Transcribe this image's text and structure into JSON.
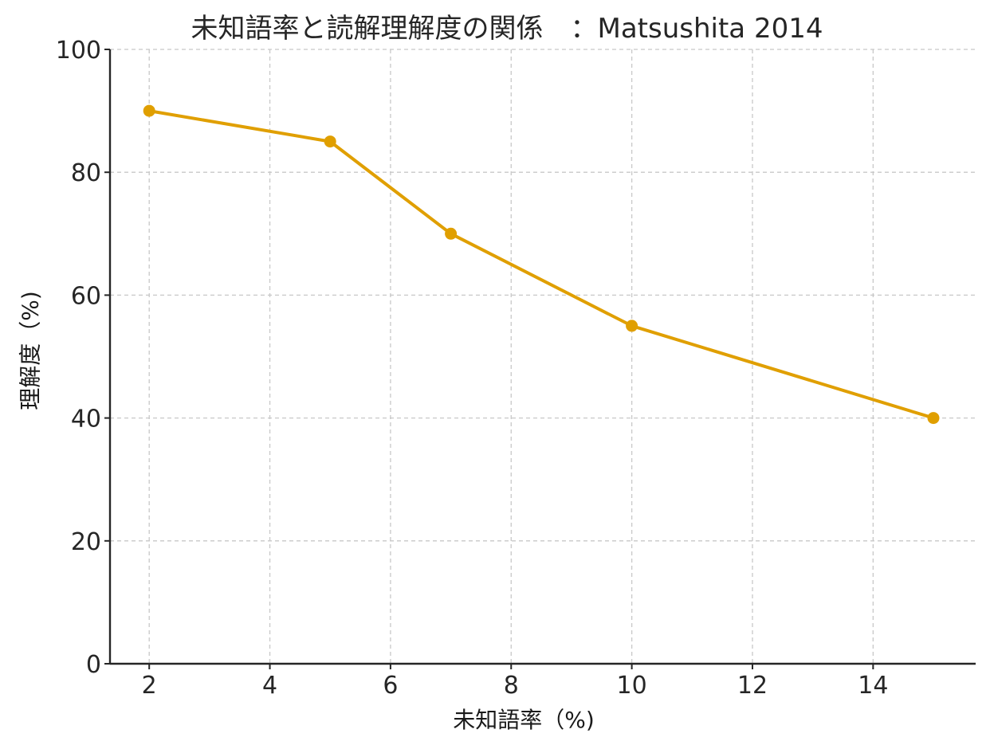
{
  "chart_data": {
    "type": "line",
    "title": "未知語率と読解理解度の関係　：Matsushita 2014",
    "xlabel": "未知語率（%)",
    "ylabel": "理解度（%)",
    "xlim": [
      1.35,
      15.7
    ],
    "ylim": [
      0,
      100
    ],
    "xticks": [
      "2",
      "4",
      "6",
      "8",
      "10",
      "12",
      "14"
    ],
    "yticks": [
      "0",
      "20",
      "40",
      "60",
      "80",
      "100"
    ],
    "grid": true,
    "color": "#E09F00",
    "series": [
      {
        "x": [
          2,
          5,
          7,
          10,
          15
        ],
        "y": [
          90,
          85,
          70,
          55,
          40
        ]
      }
    ]
  }
}
